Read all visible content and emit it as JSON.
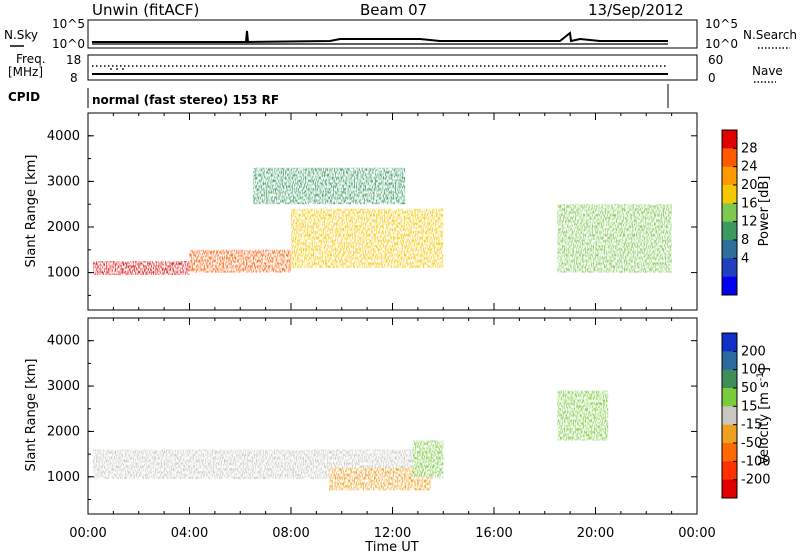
{
  "header": {
    "station": "Unwin (fitACF)",
    "beam": "Beam 07",
    "date": "13/Sep/2012"
  },
  "top_panels": {
    "nsky_label": "N.Sky",
    "nsearch_label": "N.Search",
    "freq_label_1": "Freq.",
    "freq_label_2": "[MHz]",
    "nave_label": "Nave",
    "cpid_label": "CPID",
    "cpid_text": "normal (fast stereo) 153 RF",
    "noise_ticks_left": [
      "10^5",
      "10^0"
    ],
    "noise_ticks_right": [
      "10^5",
      "10^0"
    ],
    "freq_ticks": [
      "18",
      "8"
    ],
    "nave_ticks": [
      "60",
      "0"
    ]
  },
  "chart_data": [
    {
      "type": "heatmap",
      "name": "power",
      "ylabel": "Slant Range [km]",
      "xlabel": "Time UT",
      "x_ticks": [
        "00:00",
        "04:00",
        "08:00",
        "12:00",
        "16:00",
        "20:00",
        "00:00"
      ],
      "x_range_hours": [
        0,
        24
      ],
      "ylim": [
        180,
        4500
      ],
      "y_ticks": [
        1000,
        2000,
        3000,
        4000
      ],
      "colorbar": {
        "label": "Power [dB]",
        "ticks": [
          "28",
          "24",
          "20",
          "16",
          "12",
          "8",
          "4"
        ],
        "colors": [
          "#e00000",
          "#ff5a00",
          "#ff9a00",
          "#f5c800",
          "#7ec850",
          "#3a9a60",
          "#2f6f9a",
          "#2040c0",
          "#0000ee"
        ]
      },
      "series": [
        {
          "start_hour": 0.2,
          "end_hour": 4.0,
          "range_km": [
            950,
            1250
          ],
          "level_db": 26
        },
        {
          "start_hour": 4.0,
          "end_hour": 8.0,
          "range_km": [
            1000,
            1500
          ],
          "level_db": 22
        },
        {
          "start_hour": 8.0,
          "end_hour": 14.0,
          "range_km": [
            1100,
            2400
          ],
          "level_db": 18
        },
        {
          "start_hour": 6.5,
          "end_hour": 12.5,
          "range_km": [
            2500,
            3300
          ],
          "level_db": 10
        },
        {
          "start_hour": 18.5,
          "end_hour": 23.0,
          "range_km": [
            1000,
            2500
          ],
          "level_db": 14
        }
      ]
    },
    {
      "type": "heatmap",
      "name": "velocity",
      "ylabel": "Slant Range [km]",
      "xlabel": "Time UT",
      "x_ticks": [
        "00:00",
        "04:00",
        "08:00",
        "12:00",
        "16:00",
        "20:00",
        "00:00"
      ],
      "x_range_hours": [
        0,
        24
      ],
      "ylim": [
        180,
        4500
      ],
      "y_ticks": [
        1000,
        2000,
        3000,
        4000
      ],
      "colorbar": {
        "label": "Velocity [m s",
        "label_sup": "-1",
        "label_end": "]",
        "ticks": [
          "200",
          "100",
          "50",
          "15",
          "-15",
          "-50",
          "-100",
          "-200"
        ],
        "colors": [
          "#1030c8",
          "#2a6aa0",
          "#3d8f5a",
          "#7acc3a",
          "#c8c8c0",
          "#f0a020",
          "#ff6a00",
          "#ff3000",
          "#e00000"
        ]
      },
      "series": [
        {
          "start_hour": 0.2,
          "end_hour": 14.0,
          "range_km": [
            950,
            1600
          ],
          "velocity_ms": 0
        },
        {
          "start_hour": 9.5,
          "end_hour": 13.5,
          "range_km": [
            700,
            1200
          ],
          "velocity_ms": -40
        },
        {
          "start_hour": 12.8,
          "end_hour": 14.0,
          "range_km": [
            1000,
            1800
          ],
          "velocity_ms": 40
        },
        {
          "start_hour": 18.5,
          "end_hour": 20.5,
          "range_km": [
            1800,
            2900
          ],
          "velocity_ms": 40
        }
      ]
    }
  ]
}
